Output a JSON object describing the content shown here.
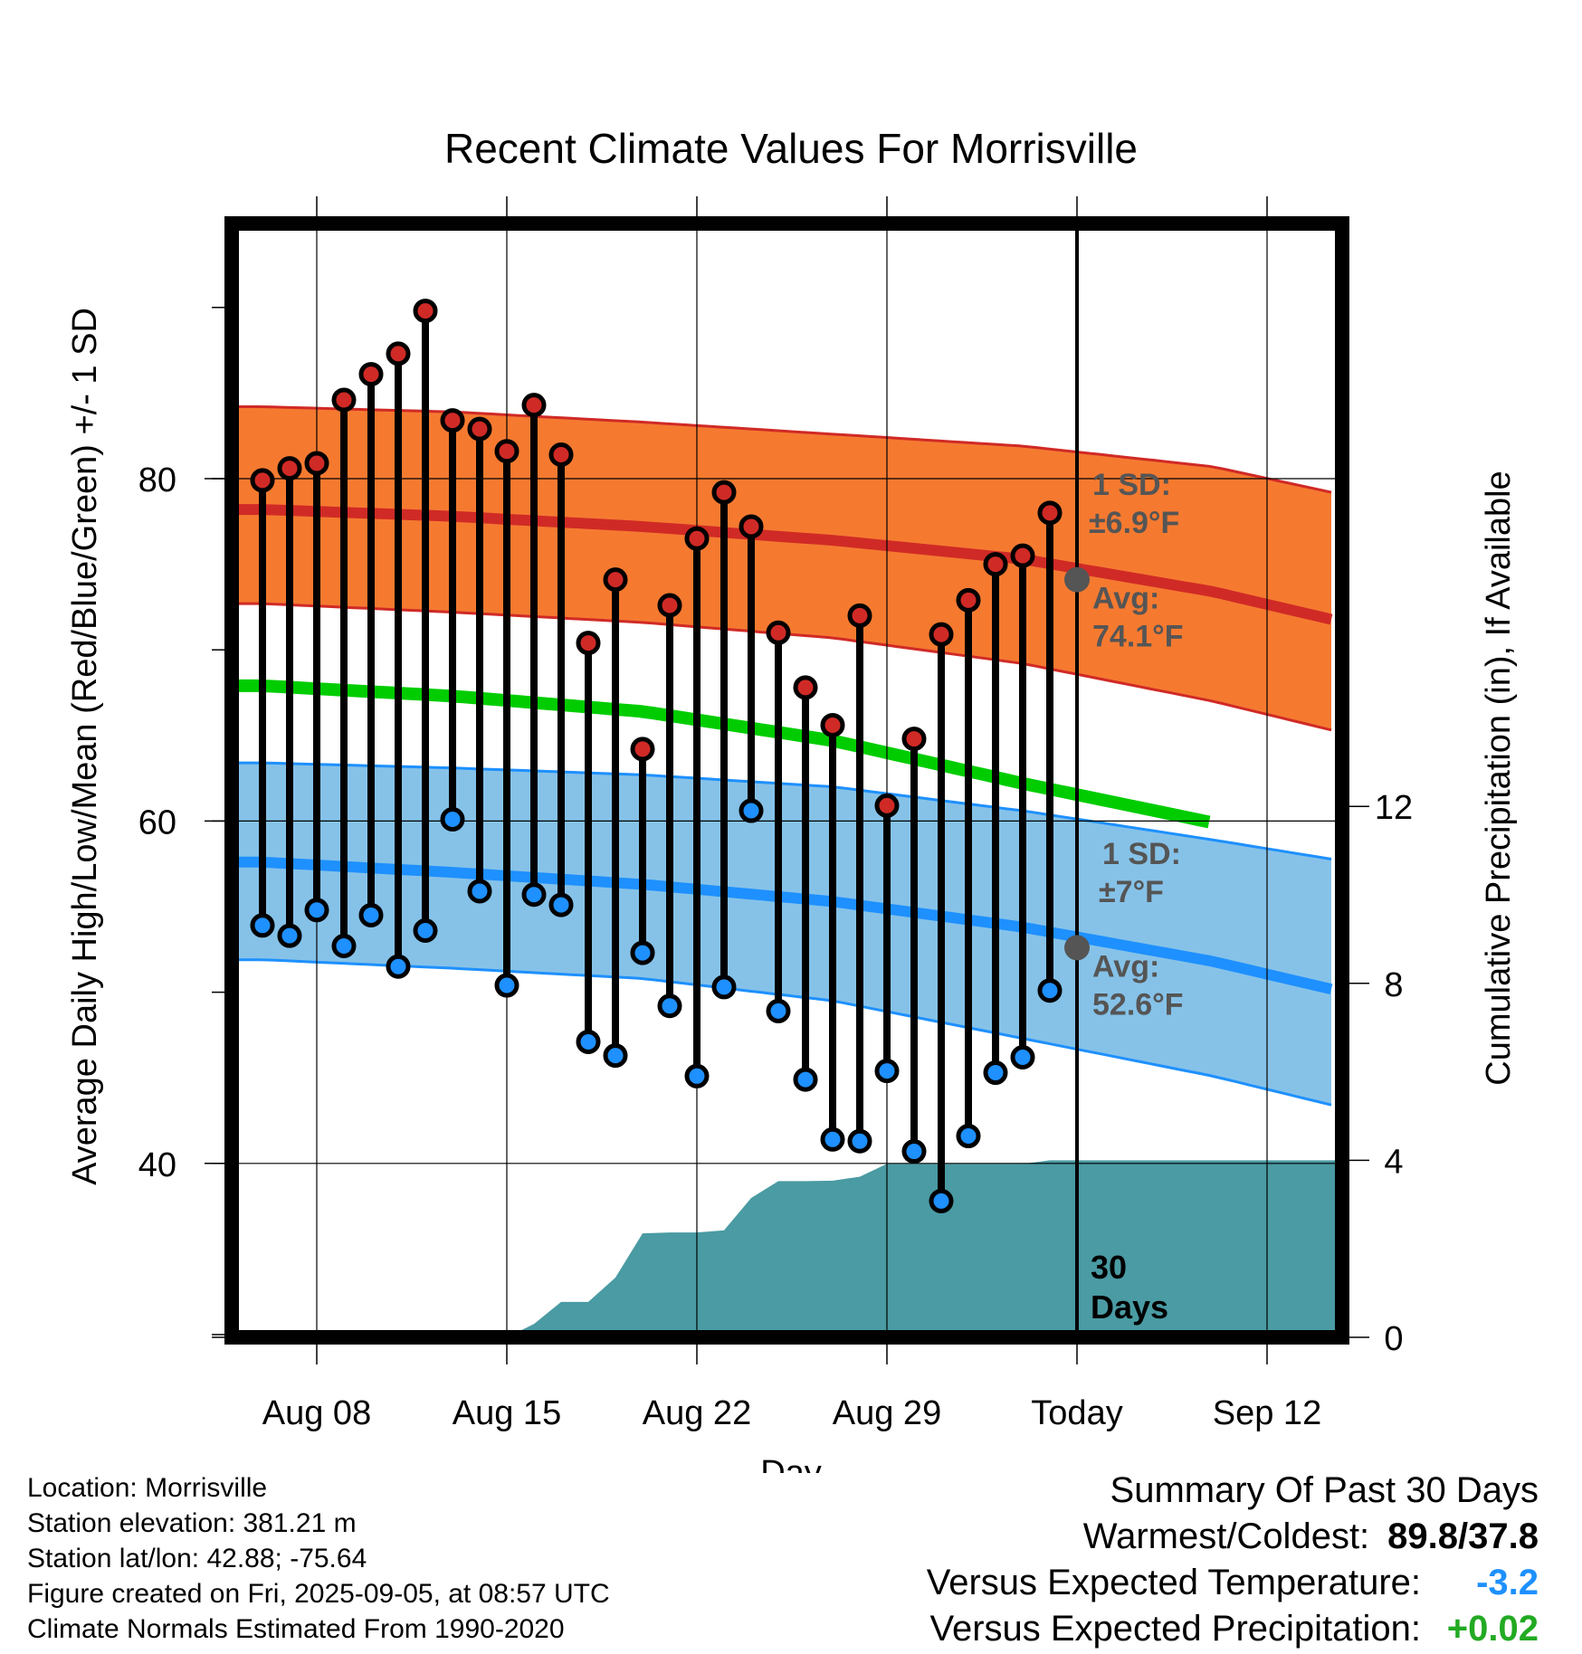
{
  "chart_data": {
    "type": "line",
    "title": "Recent Climate Values For Morrisville",
    "xlabel": "Day",
    "ylabel_left": "Average Daily High/Low/Mean (Red/Blue/Green) +/- 1 SD",
    "ylabel_right": "Cumulative Precipitation (in), If Available",
    "ylim_left": [
      30.3,
      95.5
    ],
    "ylim_right": [
      0,
      19.5
    ],
    "yticks_left": [
      "40",
      "60",
      "80"
    ],
    "yticks_right": [
      "0",
      "4",
      "8",
      "12"
    ],
    "xticks": [
      "Aug 08",
      "Aug 15",
      "Aug 22",
      "Aug 29",
      "Today",
      "Sep 12"
    ],
    "grid": true,
    "days": [
      "Aug 06",
      "Aug 07",
      "Aug 08",
      "Aug 09",
      "Aug 10",
      "Aug 11",
      "Aug 12",
      "Aug 13",
      "Aug 14",
      "Aug 15",
      "Aug 16",
      "Aug 17",
      "Aug 18",
      "Aug 19",
      "Aug 20",
      "Aug 21",
      "Aug 22",
      "Aug 23",
      "Aug 24",
      "Aug 25",
      "Aug 26",
      "Aug 27",
      "Aug 28",
      "Aug 29",
      "Aug 30",
      "Aug 31",
      "Sep 01",
      "Sep 02",
      "Sep 03",
      "Sep 04"
    ],
    "series": [
      {
        "name": "Red",
        "values": [
          79.9,
          80.6,
          80.9,
          84.6,
          86.1,
          87.3,
          89.8,
          83.4,
          82.9,
          81.6,
          84.3,
          81.4,
          70.4,
          74.1,
          64.2,
          72.6,
          76.5,
          79.2,
          77.2,
          71.0,
          67.8,
          65.6,
          72.0,
          60.9,
          64.8,
          70.9,
          72.9,
          75.0,
          75.5,
          78.0
        ]
      },
      {
        "name": "Blue",
        "values": [
          53.9,
          53.3,
          54.8,
          52.7,
          54.5,
          51.5,
          53.6,
          60.1,
          55.9,
          50.4,
          55.7,
          55.1,
          47.1,
          46.3,
          52.3,
          49.2,
          45.1,
          50.3,
          60.6,
          48.9,
          44.9,
          41.4,
          41.3,
          45.4,
          40.7,
          37.8,
          41.6,
          45.3,
          46.2,
          50.1
        ]
      },
      {
        "name": "Green",
        "values": [
          67.9,
          67.3,
          66.4,
          64.7,
          62.2,
          59.9
        ]
      },
      {
        "name": "",
        "values": [
          0,
          0,
          0,
          0,
          0,
          0,
          0,
          0,
          0,
          0,
          0.3,
          0.8,
          0.8,
          1.35,
          2.35,
          2.37,
          2.37,
          2.42,
          3.15,
          3.53,
          3.53,
          3.54,
          3.63,
          3.92,
          3.92,
          3.92,
          3.92,
          3.92,
          3.92,
          4.0
        ]
      }
    ],
    "normals": {
      "x_days": [
        0,
        7,
        14,
        21,
        28,
        35,
        42
      ],
      "high_mean": [
        78.2,
        77.8,
        77.2,
        76.4,
        75.3,
        73.4,
        70.8
      ],
      "high_upper": [
        84.2,
        83.9,
        83.3,
        82.6,
        81.9,
        80.7,
        78.3
      ],
      "high_lower": [
        72.7,
        72.2,
        71.6,
        70.7,
        69.2,
        67.0,
        64.3
      ],
      "low_mean": [
        57.6,
        57.0,
        56.3,
        55.3,
        53.8,
        51.8,
        49.2
      ],
      "low_upper": [
        63.4,
        63.1,
        62.7,
        62.0,
        60.6,
        58.9,
        57.1
      ],
      "low_lower": [
        51.9,
        51.4,
        50.8,
        49.5,
        47.3,
        45.1,
        42.4
      ]
    },
    "annotations": [
      {
        "sd_label": "1 SD:",
        "sd_value": "±6.9°F",
        "avg_label": "Avg:",
        "avg_value": "74.1°F",
        "avg": 74.1
      },
      {
        "sd_label": "1 SD:",
        "sd_value": "±7°F",
        "avg_label": "Avg:",
        "avg_value": "52.6°F",
        "avg": 52.6
      }
    ],
    "period_label": [
      "30",
      "Days"
    ],
    "colors": {
      "high_band": "#f57a30",
      "high_band_edge": "#d02a26",
      "high_mean": "#d02a26",
      "low_band": "#86c2e8",
      "low_band_edge": "#1e90ff",
      "low_mean": "#1e90ff",
      "mean": "#00cc00",
      "precip": "#4a9ba3",
      "high_marker": "#d02a26",
      "low_marker": "#1e90ff",
      "avg_marker": "#555555"
    }
  },
  "meta": {
    "location": "Location: Morrisville",
    "elevation": "Station elevation: 381.21 m",
    "latlon": "Station lat/lon: 42.88; -75.64",
    "created": "Figure created on Fri, 2025-09-05, at 08:57 UTC",
    "normals": "Climate Normals Estimated From 1990-2020"
  },
  "summary": {
    "title": "Summary Of Past 30 Days",
    "warm_cold_label": "Warmest/Coldest:",
    "warm_cold_value": "89.8/37.8",
    "temp_label": "Versus Expected Temperature:",
    "temp_value": "-3.2",
    "temp_color": "#1e90ff",
    "precip_label": "Versus Expected Precipitation:",
    "precip_value": "+0.02",
    "precip_color": "#22aa22"
  }
}
